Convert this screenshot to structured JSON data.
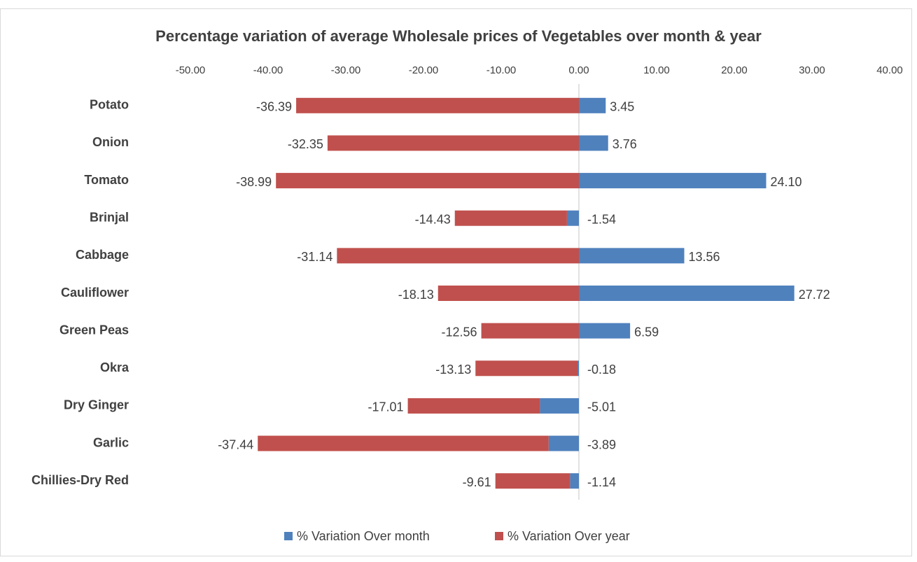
{
  "chart_data": {
    "type": "stacked_barh",
    "title": "Percentage variation of average Wholesale prices of Vegetables over month & year",
    "categories": [
      "Potato",
      "Onion",
      "Tomato",
      "Brinjal",
      "Cabbage",
      "Cauliflower",
      "Green Peas",
      "Okra",
      "Dry Ginger",
      "Garlic",
      "Chillies-Dry Red"
    ],
    "series": [
      {
        "name": "% Variation Over month",
        "color": "#4f81bd",
        "values": [
          3.45,
          3.76,
          24.1,
          -1.54,
          13.56,
          27.72,
          6.59,
          -0.18,
          -5.01,
          -3.89,
          -1.14
        ],
        "value_labels": [
          "3.45",
          "3.76",
          "24.10",
          "-1.54",
          "13.56",
          "27.72",
          "6.59",
          "-0.18",
          "-5.01",
          "-3.89",
          "-1.14"
        ]
      },
      {
        "name": "% Variation Over year",
        "color": "#c0504d",
        "values": [
          -36.39,
          -32.35,
          -38.99,
          -14.43,
          -31.14,
          -18.13,
          -12.56,
          -13.13,
          -17.01,
          -37.44,
          -9.61
        ],
        "value_labels": [
          "-36.39",
          "-32.35",
          "-38.99",
          "-14.43",
          "-31.14",
          "-18.13",
          "-12.56",
          "-13.13",
          "-17.01",
          "-37.44",
          "-9.61"
        ]
      }
    ],
    "xlim": [
      -50,
      40
    ],
    "xticks": [
      {
        "value": -50,
        "label": "-50.00"
      },
      {
        "value": -40,
        "label": "-40.00"
      },
      {
        "value": -30,
        "label": "-30.00"
      },
      {
        "value": -20,
        "label": "-20.00"
      },
      {
        "value": -10,
        "label": "-10.00"
      },
      {
        "value": 0,
        "label": "0.00"
      },
      {
        "value": 10,
        "label": "10.00"
      },
      {
        "value": 20,
        "label": "20.00"
      },
      {
        "value": 30,
        "label": "30.00"
      },
      {
        "value": 40,
        "label": "40.00"
      }
    ],
    "legend": "bottom"
  }
}
